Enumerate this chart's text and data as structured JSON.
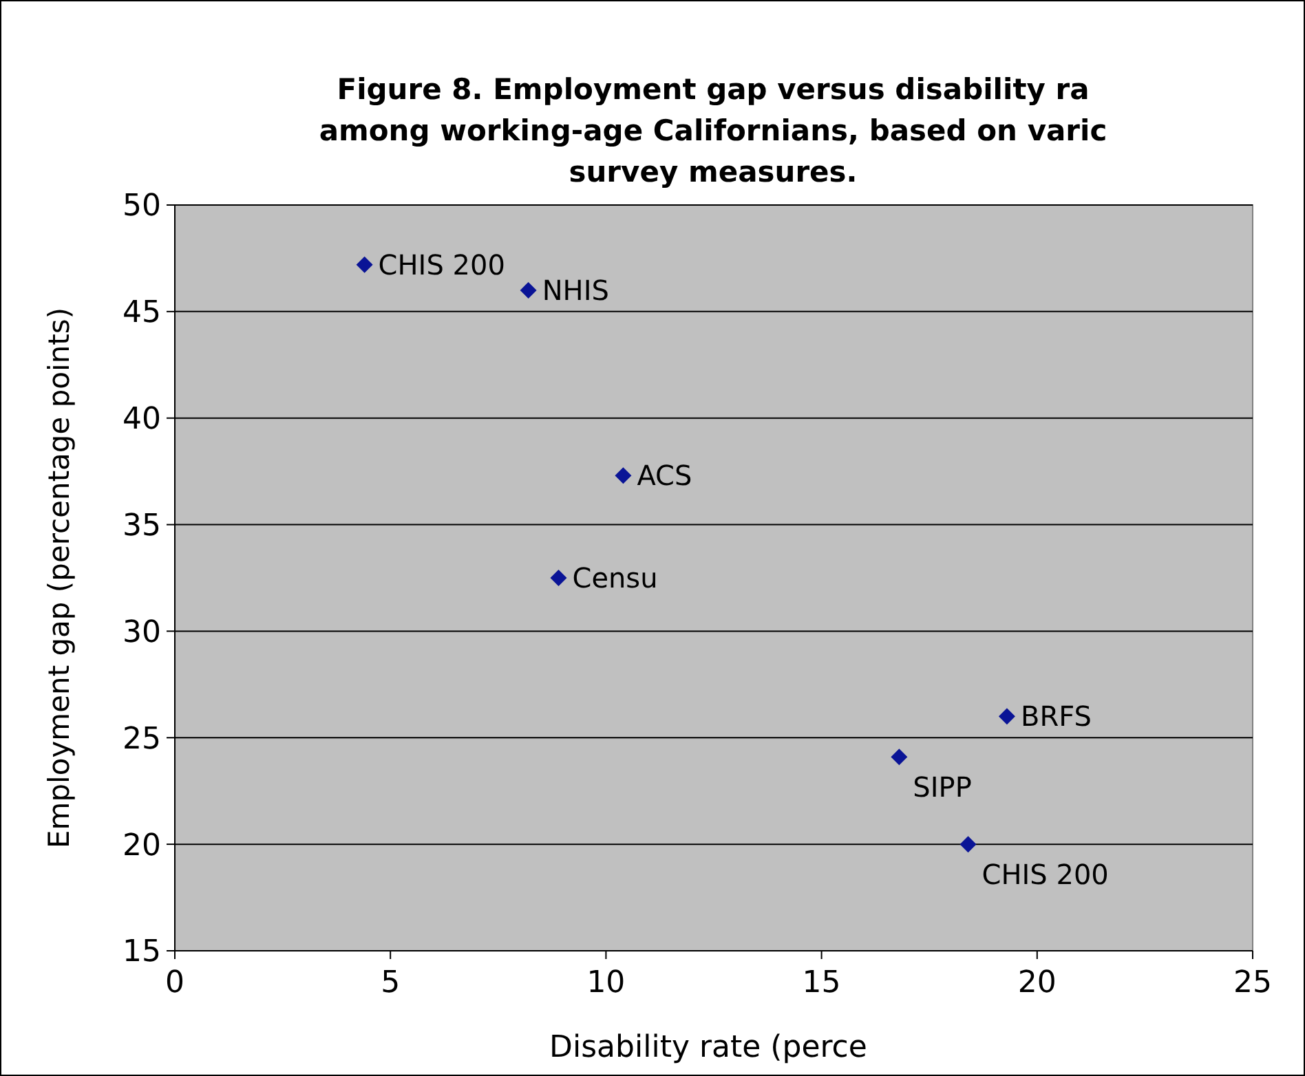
{
  "chart_data": {
    "type": "scatter",
    "title": "Figure 8.  Employment gap versus disability ra\namong working-age Californians, based on varic\nsurvey  measures.",
    "xlabel": "Disability rate (perce",
    "ylabel": "Employment gap (percentage points)",
    "x": [
      4.4,
      8.2,
      10.4,
      8.9,
      19.3,
      16.8,
      18.4
    ],
    "values": [
      47.2,
      46.0,
      37.3,
      32.5,
      26.0,
      24.1,
      20.0
    ],
    "color": "#0a1496",
    "marker": "diamond",
    "xlim": [
      0,
      25
    ],
    "xticks": [
      0,
      5,
      10,
      15,
      20,
      25
    ],
    "ylim": [
      15,
      50
    ],
    "yticks": [
      15,
      20,
      25,
      30,
      35,
      40,
      45,
      50
    ],
    "grid": "y",
    "annotations": [
      {
        "text": "CHIS 200",
        "x": 4.4,
        "y": 47.2
      },
      {
        "text": "NHIS",
        "x": 8.2,
        "y": 46.0
      },
      {
        "text": "ACS",
        "x": 10.4,
        "y": 37.3
      },
      {
        "text": "Censu",
        "x": 8.9,
        "y": 32.5
      },
      {
        "text": "BRFS",
        "x": 19.3,
        "y": 26.0
      },
      {
        "text": "SIPP",
        "x": 16.8,
        "y": 24.1
      },
      {
        "text": "CHIS 200",
        "x": 18.4,
        "y": 20.0
      }
    ]
  }
}
